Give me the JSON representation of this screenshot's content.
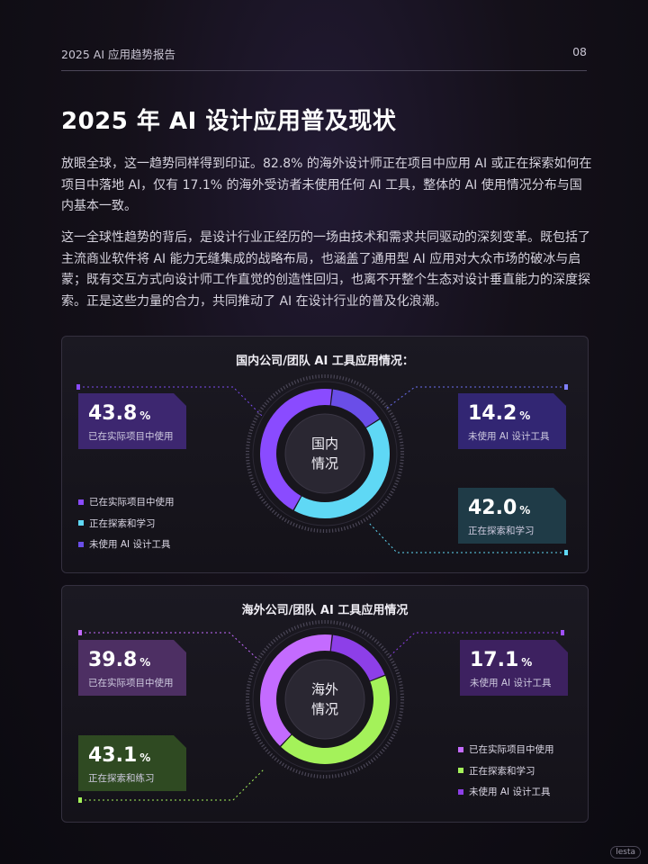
{
  "header": {
    "report_title": "2025 AI 应用趋势报告",
    "page_number": "08"
  },
  "title": "2025 年 AI 设计应用普及现状",
  "paragraphs": [
    "放眼全球，这一趋势同样得到印证。82.8% 的海外设计师正在项目中应用 AI 或正在探索如何在项目中落地 AI，仅有 17.1% 的海外受访者未使用任何 AI 工具，整体的 AI 使用情况分布与国内基本一致。",
    "这一全球性趋势的背后，是设计行业正经历的一场由技术和需求共同驱动的深刻变革。既包括了主流商业软件将 AI 能力无缝集成的战略布局，也涵盖了通用型 AI 应用对大众市场的破冰与启蒙；既有交互方式向设计师工作直觉的创造性回归，也离不开整个生态对设计垂直能力的深度探索。正是这些力量的合力，共同推动了 AI 在设计行业的普及化浪潮。"
  ],
  "chart_data": [
    {
      "type": "pie",
      "title": "国内公司/团队 AI 工具应用情况：",
      "center_label": [
        "国内",
        "情况"
      ],
      "unit": "%",
      "categories": [
        "已在实际项目中使用",
        "正在探索和学习",
        "未使用 AI 设计工具"
      ],
      "values": [
        43.8,
        42.0,
        14.2
      ],
      "colors": [
        "#8a4bff",
        "#5fd8f5",
        "#6a4ee8"
      ],
      "cards": [
        {
          "value": "43.8",
          "label": "已在实际项目中使用",
          "bg": "#3d2770"
        },
        {
          "value": "14.2",
          "label": "未使用 AI 设计工具",
          "bg": "#322673"
        },
        {
          "value": "42.0",
          "label": "正在探索和学习",
          "bg": "#1f3b47"
        }
      ],
      "legend": [
        "已在实际项目中使用",
        "正在探索和学习",
        "未使用 AI 设计工具"
      ],
      "legend_colors": [
        "#8a4bff",
        "#5fd8f5",
        "#6a4ee8"
      ]
    },
    {
      "type": "pie",
      "title": "海外公司/团队 AI 工具应用情况",
      "center_label": [
        "海外",
        "情况"
      ],
      "unit": "%",
      "categories": [
        "已在实际项目中使用",
        "正在探索和学习",
        "未使用 AI 设计工具"
      ],
      "values": [
        39.8,
        43.1,
        17.1
      ],
      "colors": [
        "#c46bff",
        "#a4f25a",
        "#8d3fe8"
      ],
      "cards": [
        {
          "value": "39.8",
          "label": "已在实际项目中使用",
          "bg": "#4d2f63"
        },
        {
          "value": "17.1",
          "label": "未使用 AI 设计工具",
          "bg": "#3d2160"
        },
        {
          "value": "43.1",
          "label": "正在探索和练习",
          "bg": "#2f4a22"
        }
      ],
      "legend": [
        "已在实际项目中使用",
        "正在探索和学习",
        "未使用 AI 设计工具"
      ],
      "legend_colors": [
        "#c46bff",
        "#a4f25a",
        "#8d3fe8"
      ]
    }
  ],
  "watermark": "lesta"
}
